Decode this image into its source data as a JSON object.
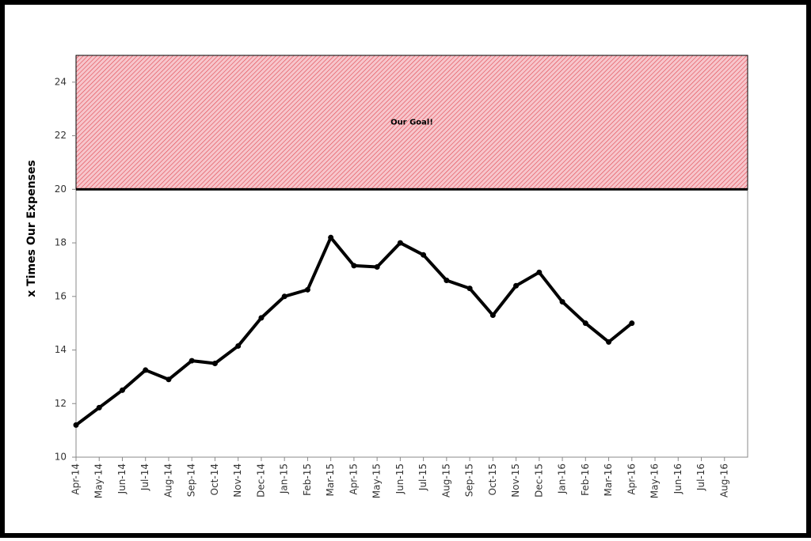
{
  "chart_data": {
    "type": "line",
    "y_label": "x Times Our Expenses",
    "categories": [
      "Apr-14",
      "May-14",
      "Jun-14",
      "Jul-14",
      "Aug-14",
      "Sep-14",
      "Oct-14",
      "Nov-14",
      "Dec-14",
      "Jan-15",
      "Feb-15",
      "Mar-15",
      "Apr-15",
      "May-15",
      "Jun-15",
      "Jul-15",
      "Aug-15",
      "Sep-15",
      "Oct-15",
      "Nov-15",
      "Dec-15",
      "Jan-16",
      "Feb-16",
      "Mar-16",
      "Apr-16",
      "May-16",
      "Jun-16",
      "Jul-16",
      "Aug-16"
    ],
    "values": [
      11.2,
      11.85,
      12.5,
      13.25,
      12.9,
      13.6,
      13.5,
      14.15,
      15.2,
      16.0,
      16.25,
      18.2,
      17.15,
      17.1,
      18.0,
      17.55,
      16.6,
      16.3,
      15.3,
      16.4,
      16.9,
      15.8,
      15.0,
      14.3,
      15.0,
      null,
      null,
      null,
      null
    ],
    "color": "#000000",
    "ylim": [
      10,
      25
    ],
    "yticks": [
      10,
      12,
      14,
      16,
      18,
      20,
      22,
      24
    ],
    "goal_band": {
      "from": 20,
      "to": 25,
      "label": "Our Goal!",
      "color": "#f7c6cc",
      "hatch_color": "#e0464f"
    }
  }
}
